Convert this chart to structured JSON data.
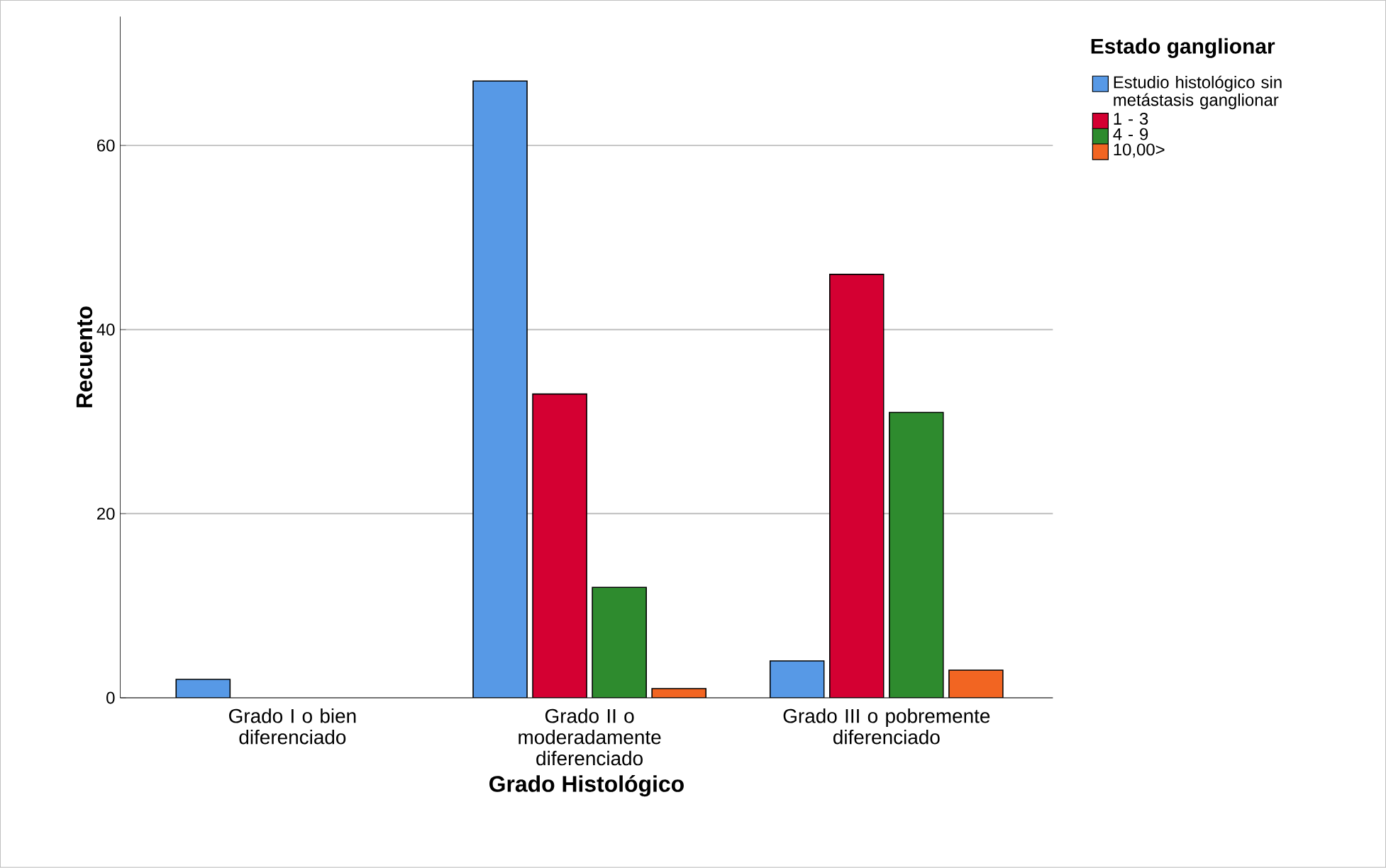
{
  "chart_data": {
    "type": "bar",
    "xlabel": "Grado Histológico",
    "ylabel": "Recuento",
    "legend_title": "Estado ganglionar",
    "categories": [
      "Grado I o bien diferenciado",
      "Grado II o moderadamente diferenciado",
      "Grado III o pobremente diferenciado"
    ],
    "series": [
      {
        "name": "Estudio histológico sin metástasis ganglionar",
        "color": "#5799e6",
        "values": [
          2,
          67,
          4
        ]
      },
      {
        "name": "1 - 3",
        "color": "#d40032",
        "values": [
          null,
          33,
          46
        ]
      },
      {
        "name": "4 - 9",
        "color": "#2e8b2e",
        "values": [
          null,
          12,
          31
        ]
      },
      {
        "name": "10,00>",
        "color": "#f26522",
        "values": [
          null,
          1,
          3
        ]
      }
    ],
    "ylim": [
      0,
      74
    ],
    "yticks": [
      0,
      20,
      40,
      60
    ],
    "grid": "y",
    "legend": "right"
  }
}
